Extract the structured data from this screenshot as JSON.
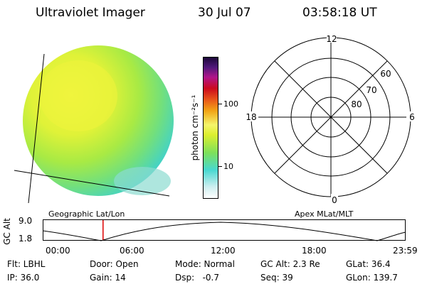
{
  "header": {
    "title": "Ultraviolet Imager",
    "date": "30 Jul 07",
    "time": "03:58:18 UT"
  },
  "colorbar": {
    "unit_label": "photon cm⁻²s⁻¹",
    "tick_100": "100",
    "tick_10": "10"
  },
  "polar": {
    "mlt_top": "12",
    "mlt_left": "18",
    "mlt_right": "6",
    "mlt_bottom": "0",
    "lat_60": "60",
    "lat_70": "70",
    "lat_80": "80"
  },
  "labels": {
    "left_coords": "Geographic Lat/Lon",
    "right_coords": "Apex MLat/MLT"
  },
  "altitude_plot": {
    "axis_label": "GC Alt",
    "y_top": "9.0",
    "y_bottom": "1.8",
    "x_ticks": [
      "00:00",
      "06:00",
      "12:00",
      "18:00",
      "23:59"
    ],
    "marker_color": "#dd0000",
    "marker_time": "03:58:18"
  },
  "status": {
    "row1": {
      "filter": "Flt: LBHL",
      "door": "Door: Open",
      "mode": "Mode: Normal",
      "gc_alt": "GC Alt: 2.3 Re",
      "glat": "GLat: 36.4"
    },
    "row2": {
      "ip": "IP: 36.0",
      "gain": "Gain: 14",
      "dsp": "Dsp:   -0.7",
      "seq": "Seq: 39",
      "glon": "GLon: 139.7"
    }
  },
  "colors": {
    "image_yellow": "#e2f23a",
    "image_green": "#9fe84a",
    "image_cyan": "#47dcc4"
  }
}
